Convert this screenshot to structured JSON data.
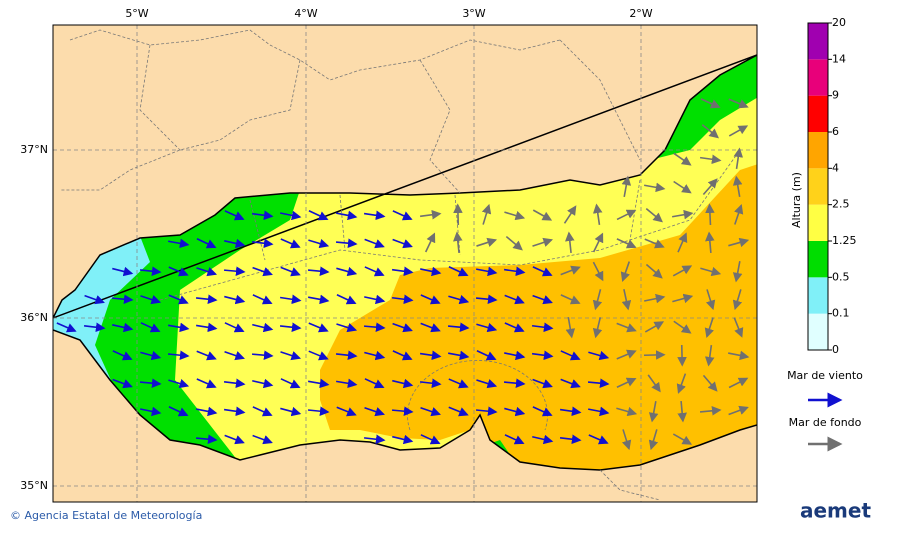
{
  "map": {
    "lon_labels": [
      "5°W",
      "4°W",
      "3°W",
      "2°W"
    ],
    "lat_labels": [
      "37°N",
      "36°N",
      "35°N"
    ]
  },
  "colorbar": {
    "title": "Altura (m)",
    "levels": [
      0,
      0.1,
      0.5,
      1.25,
      2.5,
      4,
      6,
      9,
      14,
      20
    ],
    "colors": [
      "#e0ffff",
      "#80f0f8",
      "#00dd00",
      "#ffff44",
      "#ffd21a",
      "#ffa500",
      "#ff0000",
      "#e8007a",
      "#a000b0"
    ]
  },
  "legend": {
    "wind_sea": "Mar de viento",
    "swell": "Mar de fondo"
  },
  "footer": {
    "credit": "© Agencia Estatal de Meteorología",
    "logo": "aemet"
  }
}
